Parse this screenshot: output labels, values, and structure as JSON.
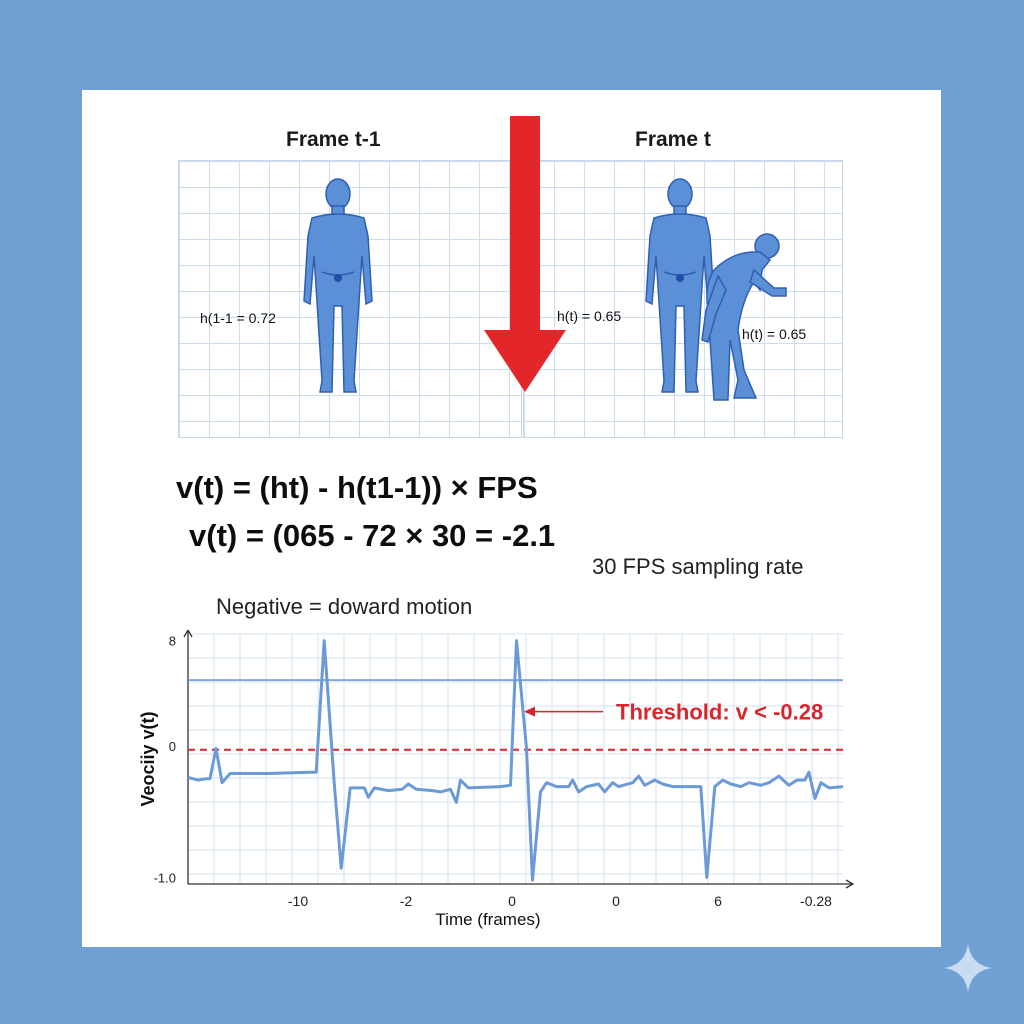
{
  "colors": {
    "background": "#6f9fd3",
    "figure": "#5b8fd6",
    "figure_outline": "#2f5fb3",
    "arrow": "#e3262a",
    "series": "#6b9ad6",
    "threshold": "#d9252b"
  },
  "frames": {
    "left_title": "Frame t-1",
    "right_title": "Frame t",
    "left_height_label": "h(1-1 = 0.72",
    "right_height_label": "h(t) = 0.65",
    "bent_height_label": "h(t) = 0.65"
  },
  "formula": {
    "line1": "v(t) = (ht) - h(t1-1)) × FPS",
    "line2": "v(t) = (065 - 72 × 30 = -2.1"
  },
  "notes": {
    "sampling": "30 FPS sampling rate",
    "negative": "Negative = doward motion"
  },
  "chart_data": {
    "type": "line",
    "ylabel": "Veociiy v(t)",
    "xlabel": "Time (frames)",
    "y_tick_labels": [
      "8",
      "0",
      "-1.0"
    ],
    "x_tick_labels": [
      "-10",
      "-2",
      "0",
      "0",
      "6",
      "-0.28"
    ],
    "annotation": "Threshold: v < -0.28",
    "grid": true,
    "series": [
      {
        "values": [
          [
            0,
            -2.4
          ],
          [
            10,
            -2.6
          ],
          [
            18,
            -2.5
          ],
          [
            22,
            -2.5
          ],
          [
            28,
            -0.2
          ],
          [
            34,
            -2.8
          ],
          [
            42,
            -2.1
          ],
          [
            80,
            -2.1
          ],
          [
            122,
            -2.0
          ],
          [
            128,
            -2.0
          ],
          [
            136,
            8.0
          ],
          [
            146,
            -2.8
          ],
          [
            153,
            -9.3
          ],
          [
            162,
            -3.2
          ],
          [
            176,
            -3.2
          ],
          [
            180,
            -3.9
          ],
          [
            186,
            -3.2
          ],
          [
            200,
            -3.4
          ],
          [
            214,
            -3.3
          ],
          [
            220,
            -2.9
          ],
          [
            228,
            -3.3
          ],
          [
            244,
            -3.4
          ],
          [
            252,
            -3.5
          ],
          [
            262,
            -3.3
          ],
          [
            268,
            -4.3
          ],
          [
            272,
            -2.6
          ],
          [
            280,
            -3.2
          ],
          [
            312,
            -3.1
          ],
          [
            322,
            -3.0
          ],
          [
            328,
            8.0
          ],
          [
            338,
            -0.2
          ],
          [
            344,
            -10.2
          ],
          [
            352,
            -3.5
          ],
          [
            358,
            -2.8
          ],
          [
            368,
            -3.1
          ],
          [
            380,
            -3.1
          ],
          [
            384,
            -2.6
          ],
          [
            390,
            -3.5
          ],
          [
            398,
            -3.1
          ],
          [
            410,
            -2.9
          ],
          [
            416,
            -3.5
          ],
          [
            424,
            -2.8
          ],
          [
            430,
            -3.1
          ],
          [
            444,
            -2.8
          ],
          [
            450,
            -2.3
          ],
          [
            456,
            -3.0
          ],
          [
            466,
            -2.6
          ],
          [
            474,
            -2.9
          ],
          [
            484,
            -3.1
          ],
          [
            490,
            -3.1
          ],
          [
            496,
            -3.1
          ],
          [
            508,
            -3.1
          ],
          [
            512,
            -3.1
          ],
          [
            518,
            -10.0
          ],
          [
            526,
            -3.1
          ],
          [
            534,
            -2.6
          ],
          [
            542,
            -2.9
          ],
          [
            552,
            -3.1
          ],
          [
            560,
            -2.8
          ],
          [
            572,
            -3.0
          ],
          [
            580,
            -2.8
          ],
          [
            590,
            -2.3
          ],
          [
            600,
            -3.0
          ],
          [
            608,
            -2.6
          ],
          [
            616,
            -2.6
          ],
          [
            620,
            -2.0
          ],
          [
            626,
            -4.0
          ],
          [
            632,
            -2.8
          ],
          [
            640,
            -3.2
          ],
          [
            654,
            -3.1
          ]
        ]
      }
    ],
    "reference_line_y": 5.0,
    "threshold_line_y": -0.3
  }
}
